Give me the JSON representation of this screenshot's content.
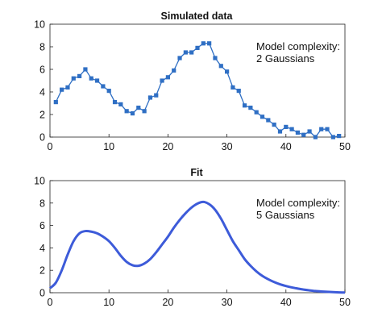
{
  "chart_data": [
    {
      "type": "line",
      "title": "Simulated data",
      "xlabel": "",
      "ylabel": "",
      "xlim": [
        0,
        50
      ],
      "ylim": [
        0,
        10
      ],
      "xticks": [
        0,
        10,
        20,
        30,
        40,
        50
      ],
      "yticks": [
        0,
        2,
        4,
        6,
        8,
        10
      ],
      "grid": false,
      "markers": true,
      "series_color": "#2f6fc4",
      "annotation": [
        "Model complexity:",
        "2 Gaussians"
      ],
      "x": [
        1,
        2,
        3,
        4,
        5,
        6,
        7,
        8,
        9,
        10,
        11,
        12,
        13,
        14,
        15,
        16,
        17,
        18,
        19,
        20,
        21,
        22,
        23,
        24,
        25,
        26,
        27,
        28,
        29,
        30,
        31,
        32,
        33,
        34,
        35,
        36,
        37,
        38,
        39,
        40,
        41,
        42,
        43,
        44,
        45,
        46,
        47,
        48,
        49
      ],
      "y": [
        3.1,
        4.2,
        4.4,
        5.2,
        5.4,
        6.0,
        5.2,
        5.0,
        4.5,
        4.1,
        3.1,
        2.9,
        2.3,
        2.1,
        2.6,
        2.3,
        3.5,
        3.7,
        5.0,
        5.3,
        5.9,
        7.0,
        7.5,
        7.5,
        7.9,
        8.3,
        8.3,
        7.0,
        6.3,
        5.8,
        4.4,
        4.1,
        2.8,
        2.6,
        2.2,
        1.8,
        1.5,
        1.1,
        0.5,
        0.9,
        0.7,
        0.4,
        0.2,
        0.5,
        0.0,
        0.7,
        0.7,
        0.0,
        0.1
      ]
    },
    {
      "type": "line",
      "title": "Fit",
      "xlabel": "",
      "ylabel": "",
      "xlim": [
        0,
        50
      ],
      "ylim": [
        0,
        10
      ],
      "xticks": [
        0,
        10,
        20,
        30,
        40,
        50
      ],
      "yticks": [
        0,
        2,
        4,
        6,
        8,
        10
      ],
      "grid": false,
      "markers": false,
      "series_color": "#3d5bd9",
      "annotation": [
        "Model complexity:",
        "5 Gaussians"
      ],
      "x": [
        0,
        1,
        2,
        3,
        4,
        5,
        6,
        7,
        8,
        9,
        10,
        11,
        12,
        13,
        14,
        15,
        16,
        17,
        18,
        19,
        20,
        21,
        22,
        23,
        24,
        25,
        26,
        27,
        28,
        29,
        30,
        31,
        32,
        33,
        34,
        35,
        36,
        37,
        38,
        39,
        40,
        41,
        42,
        43,
        44,
        45,
        46,
        47,
        48,
        49,
        50
      ],
      "y": [
        0.4,
        0.9,
        2.0,
        3.4,
        4.6,
        5.3,
        5.5,
        5.45,
        5.3,
        5.0,
        4.6,
        4.0,
        3.3,
        2.75,
        2.45,
        2.4,
        2.6,
        3.0,
        3.6,
        4.3,
        5.0,
        5.8,
        6.5,
        7.1,
        7.6,
        7.95,
        8.1,
        7.9,
        7.4,
        6.6,
        5.6,
        4.6,
        3.8,
        3.0,
        2.4,
        1.9,
        1.5,
        1.2,
        0.95,
        0.75,
        0.6,
        0.47,
        0.37,
        0.28,
        0.21,
        0.15,
        0.11,
        0.08,
        0.05,
        0.03,
        0.02
      ]
    }
  ]
}
